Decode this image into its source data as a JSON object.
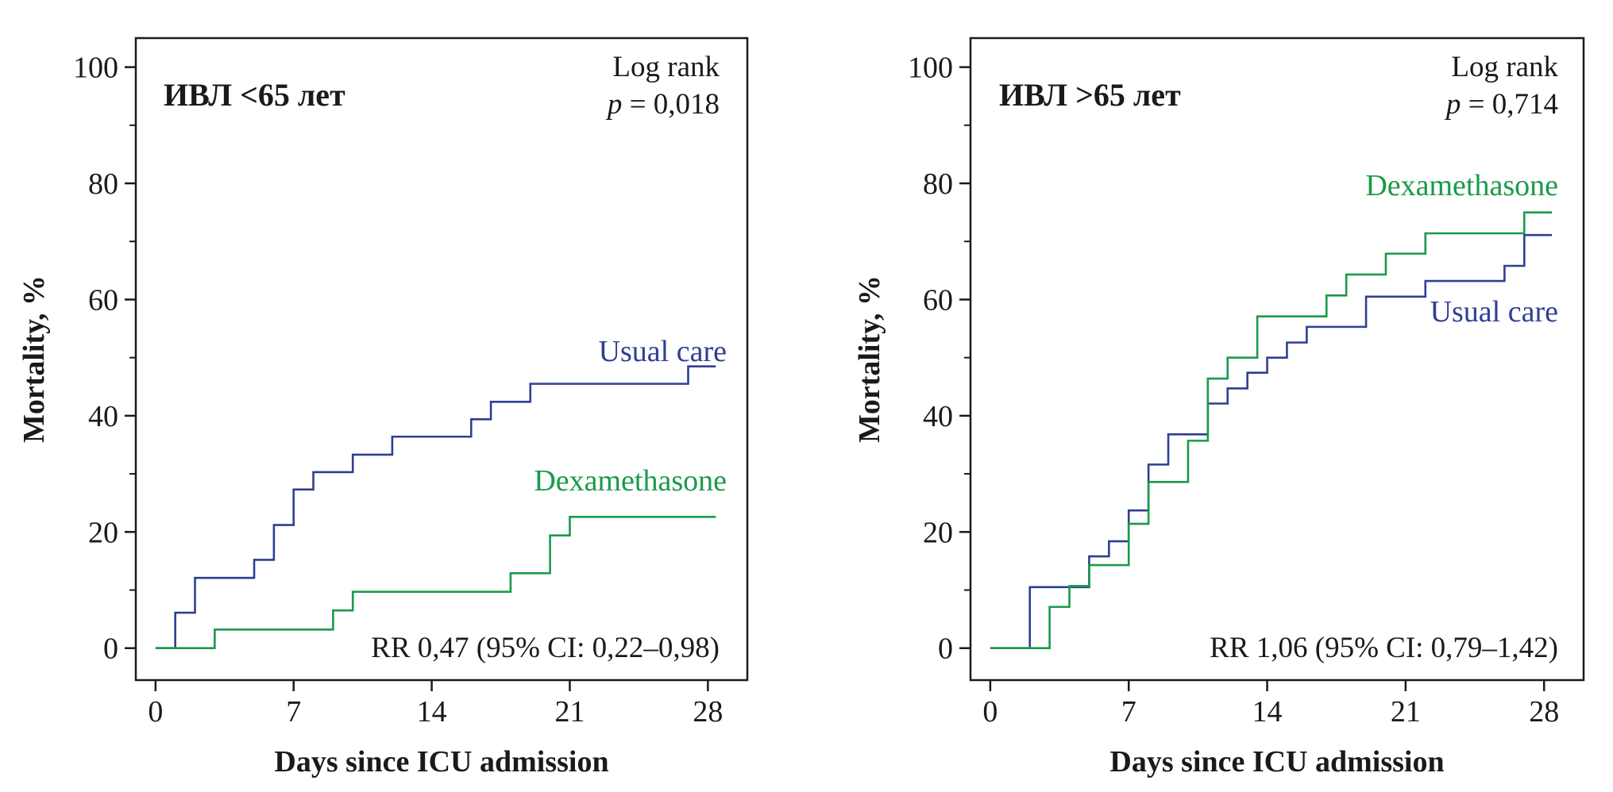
{
  "chart_data": [
    {
      "type": "line",
      "step": true,
      "panel_title": "ИВЛ <65 лет",
      "xlabel": "Days since ICU admission",
      "ylabel": "Mortality, %",
      "xlim": [
        -1,
        30
      ],
      "ylim": [
        -5.5,
        105
      ],
      "xticks": [
        0,
        7,
        14,
        21,
        28
      ],
      "yticks": [
        0,
        20,
        40,
        60,
        80,
        100
      ],
      "annotations": {
        "test_name": "Log rank",
        "p_symbol": "p",
        "p_value": " = 0,018",
        "rr": "RR 0,47 (95% CI: 0,22–0,98)"
      },
      "series": [
        {
          "name": "Usual care",
          "color": "#2e3f93",
          "x": [
            0,
            1,
            2,
            5,
            6,
            7,
            8,
            10,
            12,
            16,
            17,
            19,
            27,
            28.4
          ],
          "y": [
            0,
            6.1,
            12.1,
            15.2,
            21.2,
            27.3,
            30.3,
            33.3,
            36.4,
            39.4,
            42.4,
            45.5,
            48.5,
            48.5
          ]
        },
        {
          "name": "Dexamethasone",
          "color": "#1a9a4a",
          "x": [
            0,
            3,
            9,
            10,
            18,
            20,
            21,
            28.4
          ],
          "y": [
            0,
            3.2,
            6.5,
            9.7,
            12.9,
            19.4,
            22.6,
            22.6
          ]
        }
      ]
    },
    {
      "type": "line",
      "step": true,
      "panel_title": "ИВЛ >65 лет",
      "xlabel": "Days since ICU admission",
      "ylabel": "Mortality, %",
      "xlim": [
        -1,
        30
      ],
      "ylim": [
        -5.5,
        105
      ],
      "xticks": [
        0,
        7,
        14,
        21,
        28
      ],
      "yticks": [
        0,
        20,
        40,
        60,
        80,
        100
      ],
      "annotations": {
        "test_name": "Log rank",
        "p_symbol": "p",
        "p_value": " = 0,714",
        "rr": "RR 1,06 (95% CI: 0,79–1,42)"
      },
      "series": [
        {
          "name": "Usual care",
          "color": "#2e3f93",
          "x": [
            0,
            2,
            4,
            5,
            6,
            7,
            8,
            9,
            11,
            12,
            13,
            14,
            15,
            16,
            19,
            22,
            26,
            27,
            28.4
          ],
          "y": [
            0,
            10.5,
            10.5,
            15.8,
            18.4,
            23.7,
            31.6,
            36.8,
            42.1,
            44.7,
            47.4,
            50,
            52.6,
            55.3,
            60.5,
            63.2,
            65.8,
            71.1,
            71.1
          ]
        },
        {
          "name": "Dexamethasone",
          "color": "#1a9a4a",
          "x": [
            0,
            3,
            4,
            5,
            7,
            8,
            10,
            11,
            12,
            13.5,
            17,
            18,
            20,
            22,
            27,
            28.4
          ],
          "y": [
            0,
            7.1,
            10.7,
            14.3,
            21.4,
            28.6,
            35.7,
            46.4,
            50,
            57.1,
            60.7,
            64.3,
            67.9,
            71.4,
            75,
            75
          ]
        }
      ]
    }
  ]
}
